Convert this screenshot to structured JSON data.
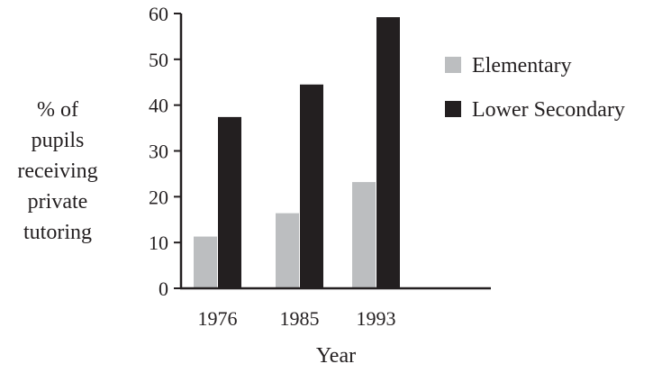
{
  "chart_data": {
    "type": "bar",
    "title": "",
    "xlabel": "Year",
    "ylabel_lines": [
      "% of",
      "pupils",
      "receiving",
      "private",
      "tutoring"
    ],
    "categories": [
      "1976",
      "1985",
      "1993"
    ],
    "series": [
      {
        "name": "Elementary",
        "values": [
          11.3,
          16.4,
          23.2
        ],
        "color": "#bcbec0"
      },
      {
        "name": "Lower Secondary",
        "values": [
          37.4,
          44.5,
          59.2
        ],
        "color": "#231f20"
      }
    ],
    "ylim": [
      0,
      60
    ],
    "yticks": [
      0,
      10,
      20,
      30,
      40,
      50,
      60
    ],
    "grid": false,
    "legend_position": "right"
  }
}
